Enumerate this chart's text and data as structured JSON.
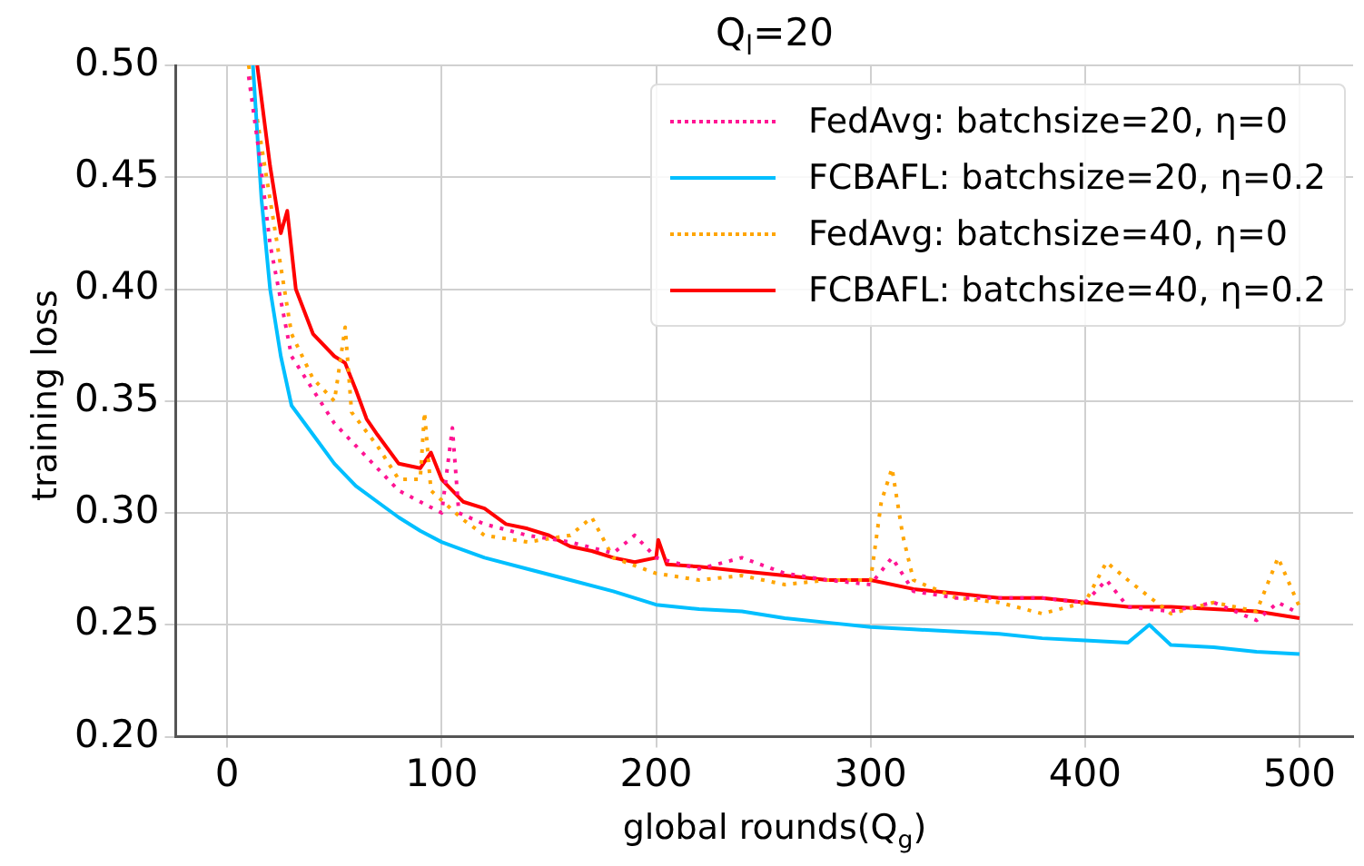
{
  "chart_data": {
    "type": "line",
    "title": "Q$_{l}$=20",
    "xlabel": "global rounds(Q$_{g}$)",
    "ylabel": "training loss",
    "xlim": [
      -24,
      525
    ],
    "xticks": [
      0,
      100,
      200,
      300,
      400,
      500
    ],
    "ylim": [
      0.2,
      0.5
    ],
    "yticks": [
      {
        "value": 0.2,
        "label": "0.20"
      },
      {
        "value": 0.25,
        "label": "0.25"
      },
      {
        "value": 0.3,
        "label": "0.30"
      },
      {
        "value": 0.35,
        "label": "0.35"
      },
      {
        "value": 0.4,
        "label": "0.40"
      },
      {
        "value": 0.45,
        "label": "0.45"
      },
      {
        "value": 0.5,
        "label": "0.50"
      }
    ],
    "grid": true,
    "legend": "top right",
    "marker": "none",
    "series": [
      {
        "name": "FedAvg: batchsize=20, η=0",
        "color": "#ff1493",
        "line_style": "dotted",
        "x": [
          10,
          15,
          20,
          25,
          30,
          40,
          50,
          60,
          70,
          80,
          90,
          100,
          105,
          108,
          120,
          140,
          160,
          180,
          190,
          200,
          220,
          240,
          260,
          280,
          300,
          310,
          320,
          340,
          360,
          380,
          400,
          410,
          420,
          440,
          460,
          480,
          490,
          500
        ],
        "values": [
          0.495,
          0.46,
          0.42,
          0.395,
          0.37,
          0.355,
          0.34,
          0.33,
          0.32,
          0.31,
          0.305,
          0.3,
          0.338,
          0.3,
          0.295,
          0.29,
          0.287,
          0.282,
          0.29,
          0.28,
          0.275,
          0.28,
          0.273,
          0.27,
          0.268,
          0.28,
          0.265,
          0.262,
          0.262,
          0.262,
          0.26,
          0.27,
          0.258,
          0.256,
          0.26,
          0.252,
          0.26,
          0.255
        ]
      },
      {
        "name": "FCBAFL: batchsize=20, η=0.2",
        "color": "#00bfff",
        "line_style": "solid",
        "x": [
          12,
          16,
          20,
          25,
          30,
          40,
          50,
          60,
          70,
          80,
          90,
          100,
          120,
          140,
          160,
          180,
          200,
          220,
          240,
          260,
          280,
          300,
          320,
          340,
          360,
          380,
          400,
          420,
          430,
          440,
          460,
          480,
          500
        ],
        "values": [
          0.5,
          0.44,
          0.4,
          0.37,
          0.348,
          0.335,
          0.322,
          0.312,
          0.305,
          0.298,
          0.292,
          0.287,
          0.28,
          0.275,
          0.27,
          0.265,
          0.259,
          0.257,
          0.256,
          0.253,
          0.251,
          0.249,
          0.248,
          0.247,
          0.246,
          0.244,
          0.243,
          0.242,
          0.25,
          0.241,
          0.24,
          0.238,
          0.237
        ]
      },
      {
        "name": "FedAvg: batchsize=40, η=0",
        "color": "#ffa500",
        "line_style": "dotted",
        "x": [
          10,
          15,
          20,
          25,
          30,
          40,
          50,
          55,
          58,
          70,
          80,
          90,
          92,
          95,
          110,
          120,
          140,
          160,
          170,
          180,
          200,
          220,
          240,
          260,
          280,
          300,
          305,
          310,
          315,
          320,
          340,
          360,
          380,
          400,
          410,
          420,
          440,
          460,
          480,
          490,
          500
        ],
        "values": [
          0.5,
          0.47,
          0.44,
          0.41,
          0.38,
          0.36,
          0.35,
          0.383,
          0.345,
          0.33,
          0.315,
          0.315,
          0.345,
          0.31,
          0.297,
          0.29,
          0.287,
          0.29,
          0.298,
          0.28,
          0.273,
          0.27,
          0.272,
          0.268,
          0.27,
          0.27,
          0.305,
          0.32,
          0.29,
          0.27,
          0.262,
          0.26,
          0.255,
          0.26,
          0.278,
          0.27,
          0.255,
          0.26,
          0.256,
          0.28,
          0.258
        ]
      },
      {
        "name": "FCBAFL: batchsize=40, η=0.2",
        "color": "#ff0000",
        "line_style": "solid",
        "x": [
          14,
          20,
          25,
          28,
          32,
          40,
          50,
          55,
          60,
          65,
          70,
          80,
          90,
          95,
          100,
          110,
          120,
          130,
          140,
          150,
          160,
          170,
          180,
          190,
          200,
          201,
          205,
          220,
          240,
          260,
          280,
          300,
          320,
          340,
          360,
          380,
          400,
          420,
          440,
          460,
          480,
          500
        ],
        "values": [
          0.5,
          0.455,
          0.425,
          0.435,
          0.4,
          0.38,
          0.37,
          0.367,
          0.355,
          0.342,
          0.335,
          0.322,
          0.32,
          0.327,
          0.315,
          0.305,
          0.302,
          0.295,
          0.293,
          0.29,
          0.285,
          0.283,
          0.28,
          0.278,
          0.28,
          0.288,
          0.277,
          0.276,
          0.274,
          0.272,
          0.27,
          0.27,
          0.266,
          0.264,
          0.262,
          0.262,
          0.26,
          0.258,
          0.258,
          0.257,
          0.256,
          0.253
        ]
      }
    ]
  }
}
